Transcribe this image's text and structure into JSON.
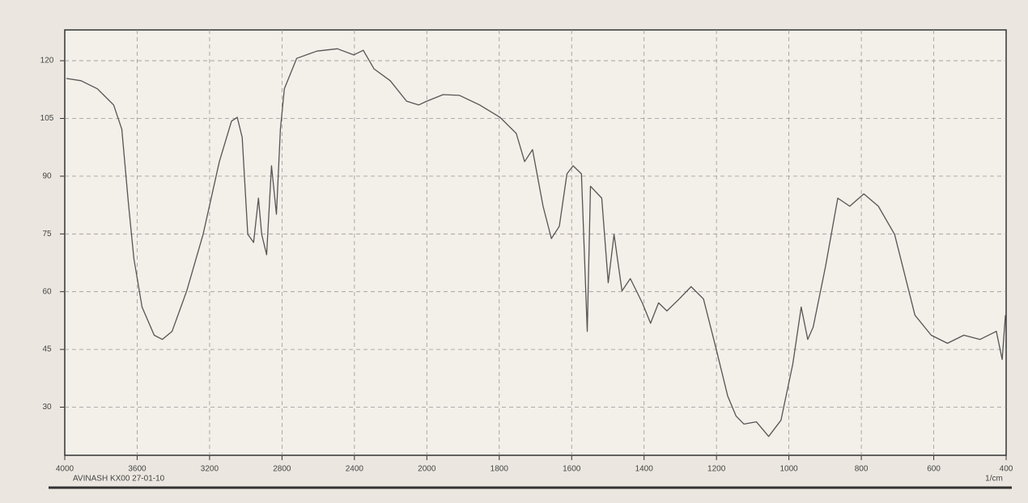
{
  "chart_data": {
    "type": "line",
    "x_label": "1/cm",
    "annotation": "AVINASH KX00 27-01-10",
    "xlim": [
      4000,
      400
    ],
    "xticks": [
      4000,
      3600,
      3200,
      2800,
      2400,
      2000,
      1800,
      1600,
      1400,
      1200,
      1000,
      800,
      600,
      400
    ],
    "ylim": [
      17.5,
      128
    ],
    "yticks": [
      30,
      45,
      60,
      75,
      90,
      105,
      120
    ],
    "grid": true,
    "series": [
      {
        "color": "#555555",
        "x": [
          3991,
          3910,
          3820,
          3730,
          3685,
          3649,
          3618,
          3573,
          3506,
          3461,
          3407,
          3326,
          3236,
          3146,
          3079,
          3047,
          3020,
          2989,
          2957,
          2930,
          2912,
          2885,
          2858,
          2831,
          2809,
          2787,
          2719,
          2607,
          2494,
          2404,
          2351,
          2292,
          2202,
          2112,
          2045,
          2000,
          1955,
          1910,
          1854,
          1798,
          1753,
          1730,
          1708,
          1679,
          1656,
          1634,
          1613,
          1596,
          1573,
          1557,
          1548,
          1517,
          1499,
          1483,
          1461,
          1438,
          1405,
          1382,
          1360,
          1337,
          1303,
          1270,
          1236,
          1202,
          1169,
          1146,
          1124,
          1090,
          1056,
          1022,
          989,
          966,
          948,
          933,
          899,
          865,
          832,
          793,
          753,
          708,
          652,
          607,
          562,
          517,
          472,
          427,
          411,
          402
        ],
        "values": [
          115.4,
          114.8,
          112.7,
          108.5,
          102.2,
          83.3,
          68.6,
          56.0,
          48.7,
          47.6,
          49.7,
          60.2,
          74.9,
          93.8,
          104.3,
          105.3,
          100.1,
          74.9,
          72.8,
          84.3,
          74.9,
          69.6,
          92.7,
          80.1,
          102.2,
          112.7,
          120.6,
          122.5,
          123.1,
          121.5,
          122.7,
          117.9,
          114.8,
          109.5,
          108.5,
          109.5,
          111.2,
          111.0,
          108.5,
          105.3,
          101.1,
          93.8,
          96.9,
          82.2,
          73.8,
          77.0,
          90.6,
          92.7,
          90.6,
          49.7,
          87.4,
          84.3,
          62.3,
          74.9,
          60.2,
          63.4,
          57.1,
          51.8,
          57.1,
          55.0,
          58.1,
          61.3,
          58.1,
          45.5,
          32.9,
          27.7,
          25.6,
          26.2,
          22.4,
          26.6,
          41.3,
          56.0,
          47.6,
          50.8,
          66.5,
          84.3,
          82.2,
          85.4,
          82.2,
          74.9,
          53.9,
          48.7,
          46.6,
          48.7,
          47.6,
          49.7,
          42.4,
          53.9
        ]
      }
    ]
  }
}
